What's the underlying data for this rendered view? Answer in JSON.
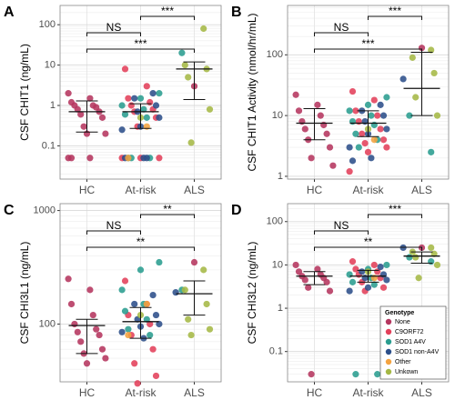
{
  "chart_data": [
    {
      "type": "strip",
      "label": "A",
      "y_label": "CSF CHIT1 (ng/mL)",
      "log_scale": true,
      "grid": true,
      "minor_grid": true,
      "categories": [
        "HC",
        "At-risk",
        "ALS"
      ],
      "ylim": [
        0.015,
        300
      ],
      "yticks": [
        0.1,
        1,
        10,
        100
      ],
      "series": [
        {
          "color": "#b5365f",
          "values": [
            [
              2,
              1.5,
              1.2,
              1,
              1,
              0.9,
              0.8,
              0.7,
              0.6,
              0.5,
              0.3,
              0.2,
              0.2,
              0.05,
              0.05,
              0.05
            ],
            [],
            [
              3
            ]
          ]
        },
        {
          "color": "#e2405a",
          "values": [
            [],
            [
              8,
              3,
              1.5,
              1.2,
              1,
              0.8,
              0.7,
              0.5,
              0.3,
              0.05,
              0.05,
              0.05
            ],
            []
          ]
        },
        {
          "color": "#2a9d8f",
          "values": [
            [],
            [
              2,
              1.5,
              1,
              0.8,
              0.6,
              0.5,
              0.05,
              0.05,
              0.05
            ],
            [
              20
            ]
          ]
        },
        {
          "color": "#2c4f8a",
          "values": [
            [],
            [
              2,
              1.5,
              1,
              0.7,
              0.5,
              0.3,
              0.25,
              0.05,
              0.05,
              0.05
            ],
            []
          ]
        },
        {
          "color": "#f4a340",
          "values": [
            [],
            [
              0.3,
              0.05
            ],
            []
          ]
        },
        {
          "color": "#a5b845",
          "values": [
            [],
            [
              0.5
            ],
            [
              80,
              10,
              8,
              5,
              0.8,
              0.12
            ]
          ]
        }
      ],
      "summary": [
        {
          "median": 0.7,
          "low": 0.22,
          "high": 1.3
        },
        {
          "median": 0.7,
          "low": 0.27,
          "high": 1.1
        },
        {
          "median": 8,
          "low": 1.4,
          "high": 12
        }
      ],
      "comparisons": [
        {
          "from": 1,
          "to": 2,
          "label": "***"
        },
        {
          "from": 0,
          "to": 1,
          "label": "NS"
        },
        {
          "from": 0,
          "to": 2,
          "label": "***"
        }
      ]
    },
    {
      "type": "strip",
      "label": "B",
      "y_label": "CSF CHIT1 Activity (nmol/hr/mL)",
      "log_scale": true,
      "grid": true,
      "minor_grid": true,
      "categories": [
        "HC",
        "At-risk",
        "ALS"
      ],
      "ylim": [
        0.9,
        650
      ],
      "yticks": [
        1,
        10,
        100
      ],
      "series": [
        {
          "color": "#b5365f",
          "values": [
            [
              22,
              15,
              12,
              10,
              8,
              7,
              6,
              5,
              4,
              3,
              2,
              1.5
            ],
            [],
            [
              130
            ]
          ]
        },
        {
          "color": "#e2405a",
          "values": [
            [],
            [
              25,
              18,
              12,
              10,
              8,
              6,
              5,
              4,
              3.5,
              3,
              2.5,
              1.2
            ],
            []
          ]
        },
        {
          "color": "#2a9d8f",
          "values": [
            [],
            [
              20,
              15,
              12,
              10,
              8,
              7,
              5,
              4,
              3
            ],
            [
              10,
              2.5
            ]
          ]
        },
        {
          "color": "#2c4f8a",
          "values": [
            [],
            [
              15,
              12,
              10,
              8,
              6,
              5,
              3,
              2,
              1.8
            ],
            [
              40
            ]
          ]
        },
        {
          "color": "#f4a340",
          "values": [
            [],
            [
              4
            ],
            []
          ]
        },
        {
          "color": "#a5b845",
          "values": [
            [],
            [
              6
            ],
            [
              120,
              90,
              50,
              20,
              10
            ]
          ]
        }
      ],
      "summary": [
        {
          "median": 7.5,
          "low": 4,
          "high": 13
        },
        {
          "median": 7.5,
          "low": 4.5,
          "high": 12
        },
        {
          "median": 28,
          "low": 10,
          "high": 110
        }
      ],
      "comparisons": [
        {
          "from": 1,
          "to": 2,
          "label": "***"
        },
        {
          "from": 0,
          "to": 1,
          "label": "NS"
        },
        {
          "from": 0,
          "to": 2,
          "label": "***"
        }
      ]
    },
    {
      "type": "strip",
      "label": "C",
      "y_label": "CSF CHI3L1 (ng/mL)",
      "log_scale": true,
      "grid": true,
      "minor_grid": true,
      "categories": [
        "HC",
        "At-risk",
        "ALS"
      ],
      "ylim": [
        31,
        1150
      ],
      "yticks": [
        100,
        1000
      ],
      "series": [
        {
          "color": "#b5365f",
          "values": [
            [
              250,
              200,
              150,
              120,
              100,
              90,
              85,
              80,
              70,
              60,
              55,
              50,
              45
            ],
            [],
            [
              350
            ]
          ]
        },
        {
          "color": "#e2405a",
          "values": [
            [],
            [
              240,
              150,
              120,
              100,
              80,
              60,
              45,
              35,
              30
            ],
            []
          ]
        },
        {
          "color": "#2a9d8f",
          "values": [
            [],
            [
              350,
              300,
              200,
              150,
              130,
              110,
              90,
              80
            ],
            [
              200
            ]
          ]
        },
        {
          "color": "#2c4f8a",
          "values": [
            [],
            [
              180,
              150,
              120,
              110,
              100,
              95,
              85,
              75
            ],
            [
              190
            ]
          ]
        },
        {
          "color": "#f4a340",
          "values": [
            [],
            [
              150,
              80
            ],
            []
          ]
        },
        {
          "color": "#a5b845",
          "values": [
            [],
            [
              120
            ],
            [
              300,
              200,
              150,
              110,
              90,
              80
            ]
          ]
        }
      ],
      "summary": [
        {
          "median": 97,
          "low": 55,
          "high": 110
        },
        {
          "median": 105,
          "low": 75,
          "high": 140
        },
        {
          "median": 185,
          "low": 120,
          "high": 240
        }
      ],
      "comparisons": [
        {
          "from": 1,
          "to": 2,
          "label": "**"
        },
        {
          "from": 0,
          "to": 1,
          "label": "NS"
        },
        {
          "from": 0,
          "to": 2,
          "label": "**"
        }
      ]
    },
    {
      "type": "strip",
      "label": "D",
      "y_label": "CSF CHI3L2 (ng/mL)",
      "log_scale": true,
      "grid": true,
      "minor_grid": true,
      "categories": [
        "HC",
        "At-risk",
        "ALS"
      ],
      "ylim": [
        0.02,
        260
      ],
      "yticks": [
        0.1,
        1,
        10,
        100
      ],
      "legend_title": "Genotype",
      "legend": "bottom-right",
      "series": [
        {
          "name": "None",
          "color": "#b5365f",
          "values": [
            [
              10,
              8,
              7,
              6,
              5.5,
              5,
              4.5,
              4,
              3,
              2.5,
              0.03
            ],
            [],
            [
              25
            ]
          ]
        },
        {
          "name": "C9ORF72",
          "color": "#e2405a",
          "values": [
            [],
            [
              12,
              10,
              8,
              7,
              6,
              5,
              4,
              3,
              2.5,
              0.03
            ],
            []
          ]
        },
        {
          "name": "SOD1 A4V",
          "color": "#2a9d8f",
          "values": [
            [],
            [
              10,
              8,
              6,
              5,
              4,
              3.5,
              0.03,
              0.03
            ],
            [
              15,
              12
            ]
          ]
        },
        {
          "name": "SOD1 non-A4V",
          "color": "#2c4f8a",
          "values": [
            [],
            [
              9,
              7,
              6,
              5,
              4.5,
              3,
              2.5
            ],
            [
              25
            ]
          ]
        },
        {
          "name": "Other",
          "color": "#f4a340",
          "values": [
            [],
            [
              5
            ],
            []
          ]
        },
        {
          "name": "Unkown",
          "color": "#a5b845",
          "values": [
            [],
            [
              7
            ],
            [
              25,
              20,
              18,
              15,
              10,
              5,
              0.03
            ]
          ]
        }
      ],
      "summary": [
        {
          "median": 5.5,
          "low": 3.5,
          "high": 7
        },
        {
          "median": 5.5,
          "low": 4,
          "high": 7.5
        },
        {
          "median": 16,
          "low": 11,
          "high": 20
        }
      ],
      "comparisons": [
        {
          "from": 1,
          "to": 2,
          "label": "***"
        },
        {
          "from": 0,
          "to": 1,
          "label": "NS"
        },
        {
          "from": 0,
          "to": 2,
          "label": "**"
        }
      ]
    }
  ]
}
